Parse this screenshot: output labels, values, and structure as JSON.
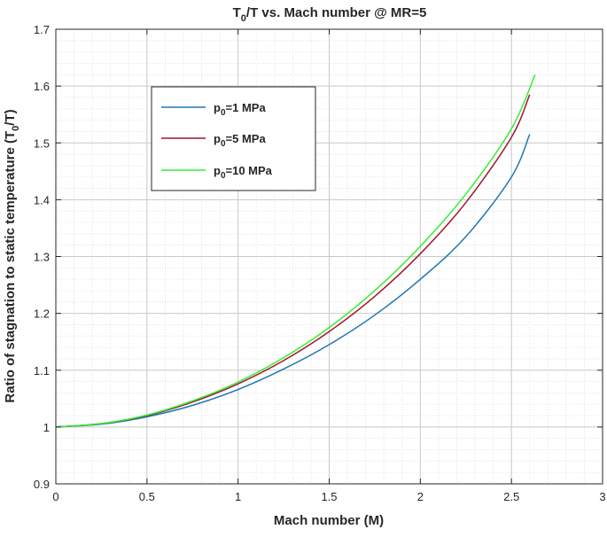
{
  "chart_data": {
    "type": "line",
    "title": {
      "main": "T",
      "sub": "0",
      "rest": "/T vs. Mach number @ MR=5"
    },
    "xlabel": "Mach number (M)",
    "ylabel": {
      "main": "Ratio of stagnation to static temperature (T",
      "sub": "0",
      "rest": "/T)"
    },
    "xlim": [
      0,
      3
    ],
    "ylim": [
      0.9,
      1.7
    ],
    "xticks": [
      0,
      0.5,
      1,
      1.5,
      2,
      2.5,
      3
    ],
    "xtick_labels": [
      "0",
      "0.5",
      "1",
      "1.5",
      "2",
      "2.5",
      "3"
    ],
    "yticks": [
      0.9,
      1,
      1.1,
      1.2,
      1.3,
      1.4,
      1.5,
      1.6,
      1.7
    ],
    "ytick_labels": [
      "0.9",
      "1",
      "1.1",
      "1.2",
      "1.3",
      "1.4",
      "1.5",
      "1.6",
      "1.7"
    ],
    "grid": "major and minor",
    "legend_position": "upper-left",
    "series": [
      {
        "name": {
          "main": "p",
          "sub": "0",
          "rest": "=1 MPa"
        },
        "color": "#1f77b4",
        "x": [
          0,
          0.25,
          0.5,
          0.75,
          1.0,
          1.25,
          1.5,
          1.75,
          2.0,
          2.25,
          2.5,
          2.6
        ],
        "y": [
          1.0,
          1.005,
          1.018,
          1.038,
          1.066,
          1.102,
          1.145,
          1.197,
          1.26,
          1.335,
          1.44,
          1.515
        ]
      },
      {
        "name": {
          "main": "p",
          "sub": "0",
          "rest": "=5 MPa"
        },
        "color": "#a2142f",
        "x": [
          0,
          0.25,
          0.5,
          0.75,
          1.0,
          1.25,
          1.5,
          1.75,
          2.0,
          2.25,
          2.5,
          2.6
        ],
        "y": [
          1.0,
          1.006,
          1.02,
          1.044,
          1.076,
          1.117,
          1.168,
          1.23,
          1.305,
          1.395,
          1.51,
          1.585
        ]
      },
      {
        "name": {
          "main": "p",
          "sub": "0",
          "rest": "=10 MPa"
        },
        "color": "#33ee33",
        "x": [
          0,
          0.25,
          0.5,
          0.75,
          1.0,
          1.25,
          1.5,
          1.75,
          2.0,
          2.25,
          2.5,
          2.63
        ],
        "y": [
          1.0,
          1.006,
          1.021,
          1.046,
          1.079,
          1.122,
          1.175,
          1.24,
          1.318,
          1.41,
          1.525,
          1.62
        ]
      }
    ]
  }
}
